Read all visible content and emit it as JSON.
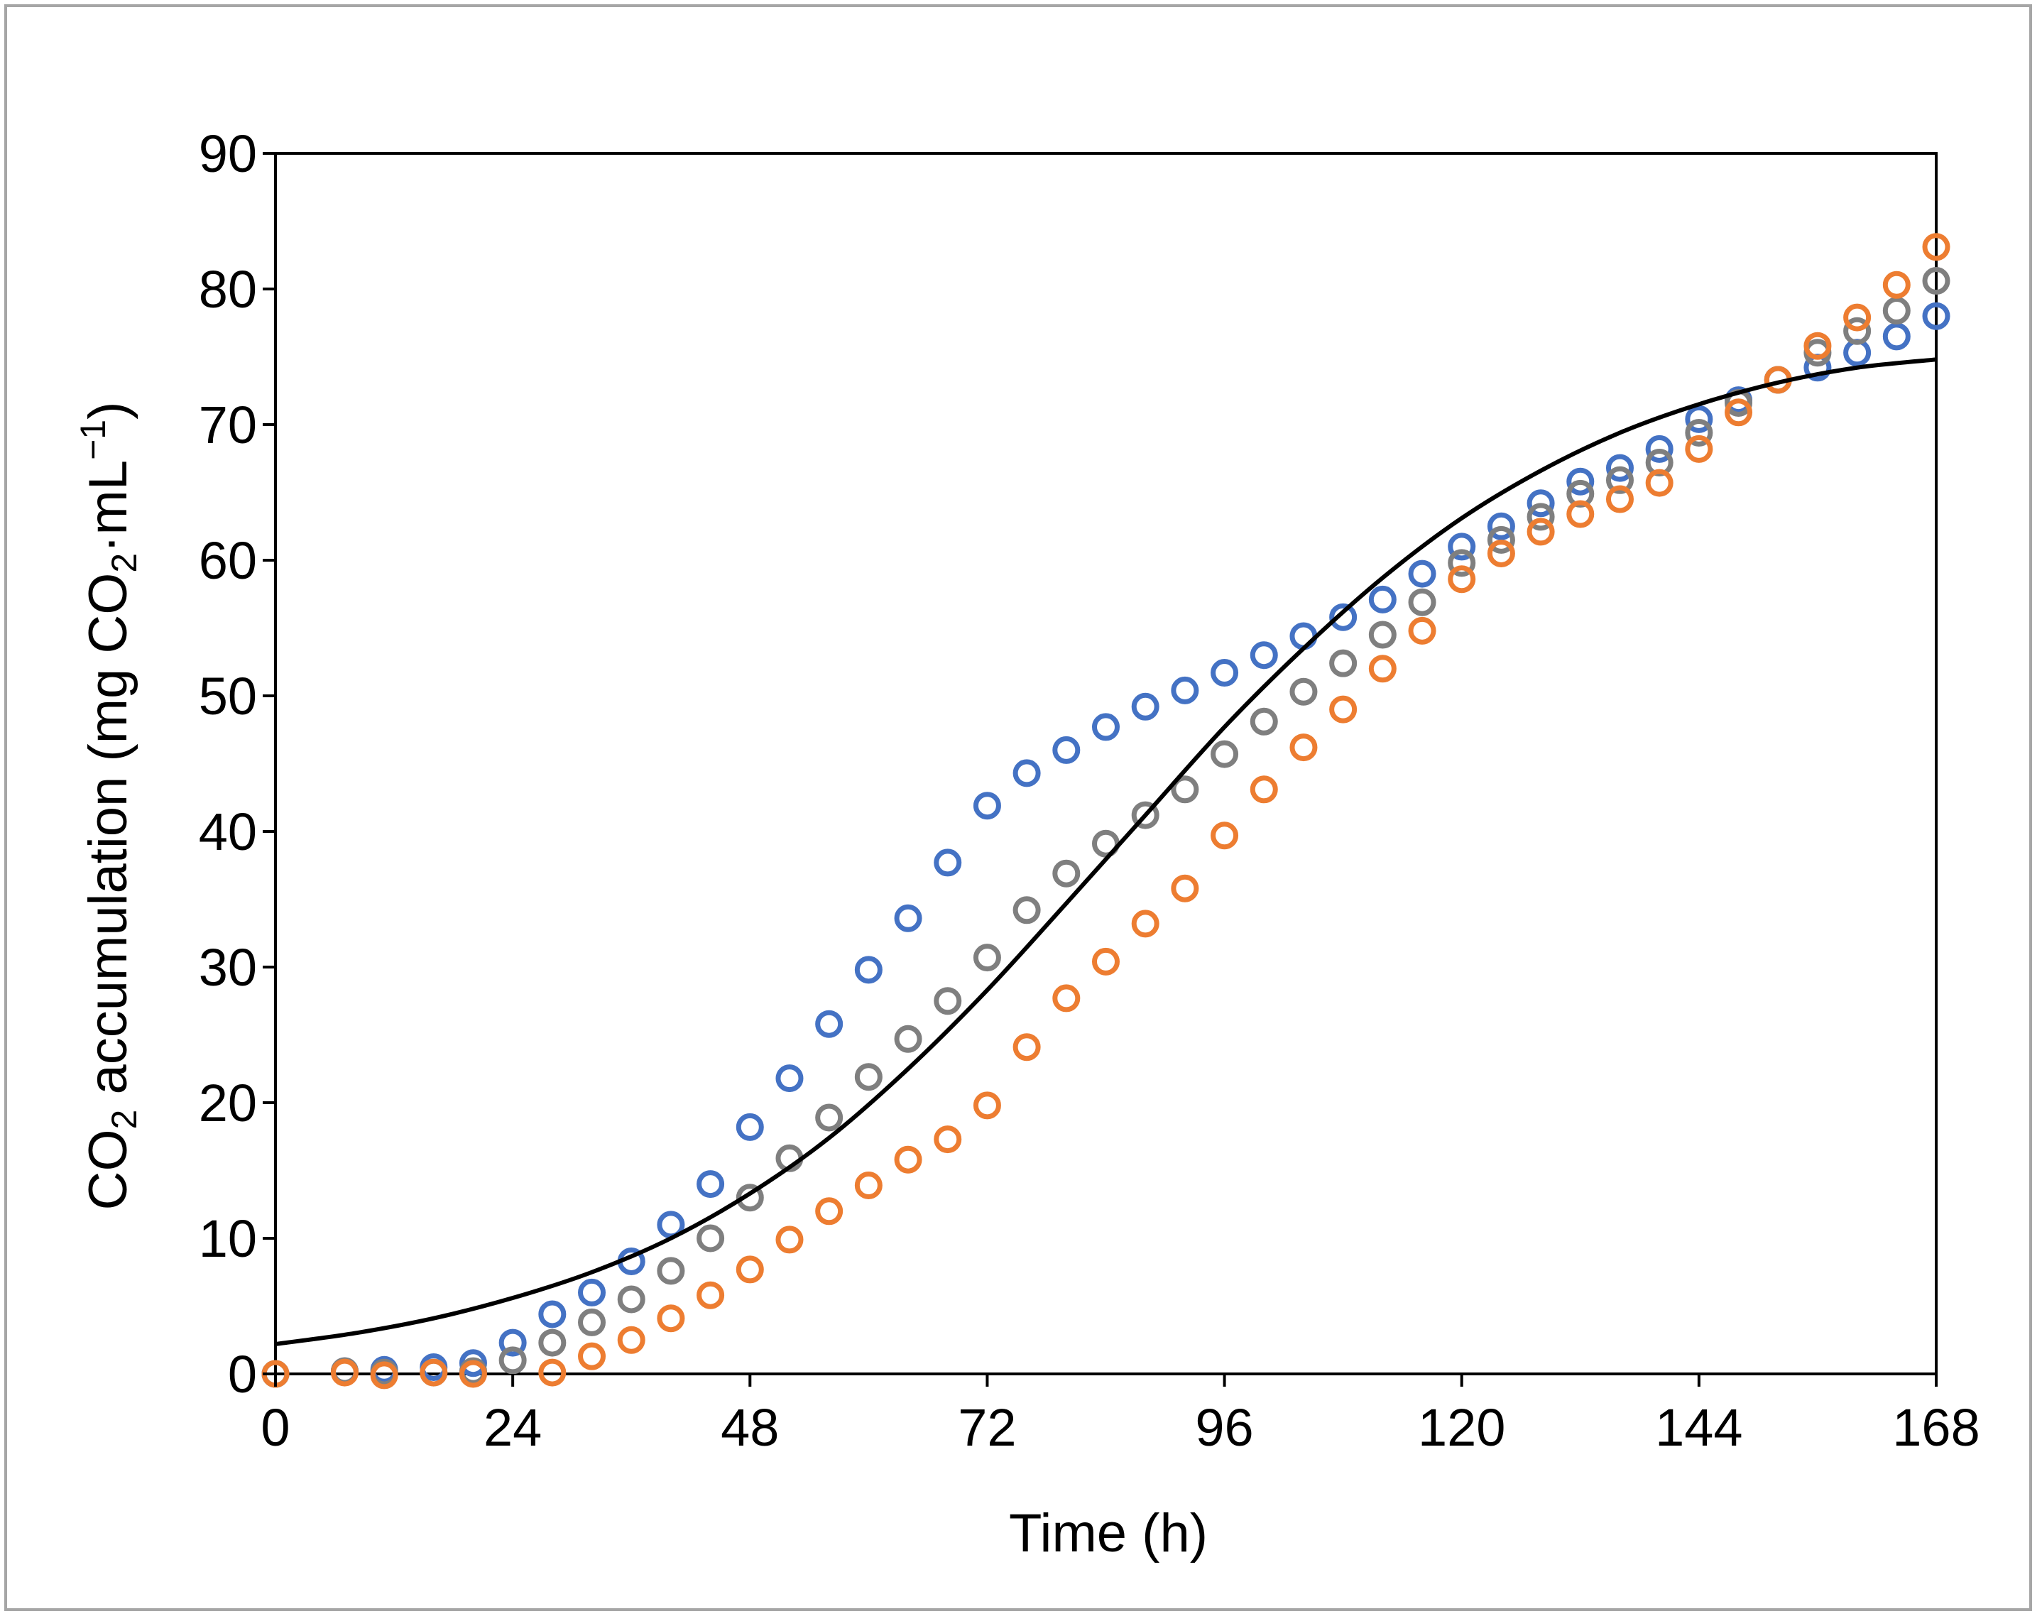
{
  "chart_data": {
    "type": "scatter",
    "title": "",
    "xlabel": "Time (h)",
    "ylabel_parts": {
      "co": "CO",
      "co_sub": "2",
      "mid": " accumulation (mg CO",
      "mid_sub": "2",
      "unit": "·mL",
      "unit_sup": "−1",
      "close": ")"
    },
    "xlim": [
      0,
      168
    ],
    "ylim": [
      0,
      90
    ],
    "xticks": [
      "0",
      "24",
      "48",
      "72",
      "96",
      "120",
      "144",
      "168"
    ],
    "xtick_values": [
      0,
      24,
      48,
      72,
      96,
      120,
      144,
      168
    ],
    "yticks": [
      "0",
      "10",
      "20",
      "30",
      "40",
      "50",
      "60",
      "70",
      "80",
      "90"
    ],
    "ytick_values": [
      0,
      10,
      20,
      30,
      40,
      50,
      60,
      70,
      80,
      90
    ],
    "grid": false,
    "legend": "none",
    "series": [
      {
        "name": "blue",
        "marker": "open-circle",
        "color": "#4472c4",
        "x": [
          0,
          7,
          11,
          16,
          20,
          24,
          28,
          32,
          36,
          40,
          44,
          48,
          52,
          56,
          60,
          64,
          68,
          72,
          76,
          80,
          84,
          88,
          92,
          96,
          100,
          104,
          108,
          112,
          116,
          120,
          124,
          128,
          132,
          136,
          140,
          144,
          148,
          152,
          156,
          160,
          164,
          168
        ],
        "y": [
          0,
          0.2,
          0.3,
          0.5,
          0.8,
          2.3,
          4.4,
          6.0,
          8.3,
          11.0,
          14.0,
          18.2,
          21.8,
          25.8,
          29.8,
          33.6,
          37.7,
          41.9,
          44.3,
          46.0,
          47.7,
          49.2,
          50.4,
          51.7,
          53.0,
          54.4,
          55.8,
          57.1,
          59.0,
          61.0,
          62.5,
          64.2,
          65.8,
          66.8,
          68.2,
          70.4,
          71.8,
          73.3,
          74.2,
          75.3,
          76.5,
          78.0
        ]
      },
      {
        "name": "gray",
        "marker": "open-circle",
        "color": "#7f7f7f",
        "x": [
          0,
          7,
          11,
          16,
          20,
          24,
          28,
          32,
          36,
          40,
          44,
          48,
          52,
          56,
          60,
          64,
          68,
          72,
          76,
          80,
          84,
          88,
          92,
          96,
          100,
          104,
          108,
          112,
          116,
          120,
          124,
          128,
          132,
          136,
          140,
          144,
          148,
          152,
          156,
          160,
          164,
          168
        ],
        "y": [
          0,
          0.2,
          0.1,
          0.1,
          0.2,
          1.0,
          2.3,
          3.8,
          5.5,
          7.6,
          10.0,
          13.0,
          15.9,
          18.9,
          21.9,
          24.7,
          27.5,
          30.7,
          34.2,
          36.9,
          39.1,
          41.2,
          43.1,
          45.7,
          48.1,
          50.3,
          52.4,
          54.5,
          56.9,
          59.8,
          61.5,
          63.2,
          64.9,
          65.9,
          67.2,
          69.4,
          71.6,
          73.3,
          75.3,
          76.9,
          78.4,
          80.6
        ]
      },
      {
        "name": "orange",
        "marker": "open-circle",
        "color": "#ed7d31",
        "x": [
          0,
          7,
          11,
          16,
          20,
          28,
          32,
          36,
          40,
          44,
          48,
          52,
          56,
          60,
          64,
          68,
          72,
          76,
          80,
          84,
          88,
          92,
          96,
          100,
          104,
          108,
          112,
          116,
          120,
          124,
          128,
          132,
          136,
          140,
          144,
          148,
          152,
          156,
          160,
          164,
          168
        ],
        "y": [
          0,
          0.1,
          -0.1,
          0.1,
          0.0,
          0.1,
          1.3,
          2.5,
          4.1,
          5.8,
          7.7,
          9.9,
          12.0,
          13.9,
          15.8,
          17.3,
          19.8,
          24.1,
          27.7,
          30.4,
          33.2,
          35.8,
          39.7,
          43.1,
          46.2,
          49.0,
          52.0,
          54.8,
          58.6,
          60.5,
          62.1,
          63.4,
          64.5,
          65.7,
          68.2,
          70.9,
          73.3,
          75.8,
          77.9,
          80.3,
          83.1
        ]
      },
      {
        "name": "fit",
        "marker": "line",
        "color": "#000000",
        "x": [
          0,
          8,
          16,
          24,
          32,
          40,
          48,
          56,
          64,
          72,
          80,
          88,
          96,
          104,
          112,
          120,
          128,
          136,
          144,
          152,
          160,
          168
        ],
        "y": [
          2.2,
          3.0,
          4.1,
          5.6,
          7.5,
          10.0,
          13.3,
          17.4,
          22.5,
          28.3,
          34.7,
          41.2,
          47.7,
          53.5,
          58.7,
          63.1,
          66.6,
          69.4,
          71.5,
          73.1,
          74.2,
          74.8
        ]
      }
    ]
  }
}
